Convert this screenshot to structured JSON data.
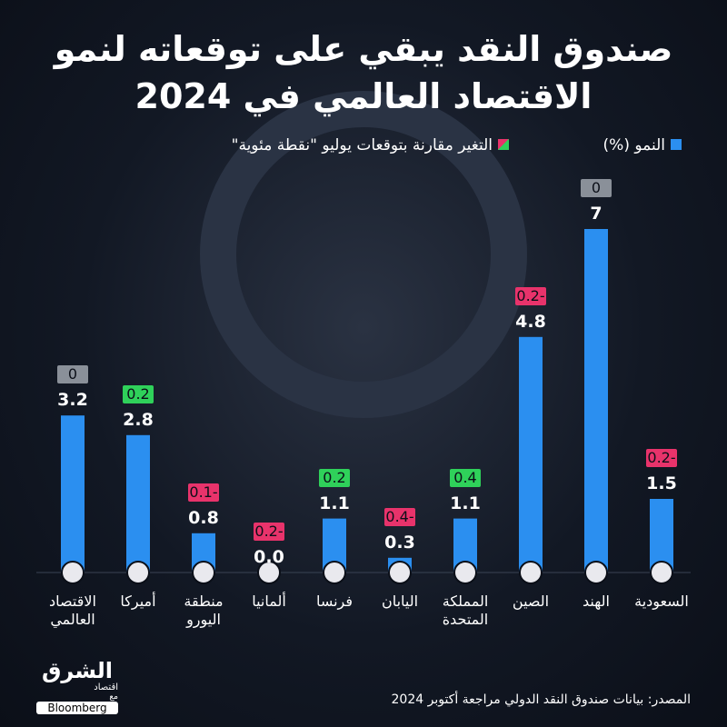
{
  "chart_data": {
    "type": "bar",
    "title": "صندوق النقد يبقي على توقعاته لنمو الاقتصاد العالمي في 2024",
    "categories": [
      "الاقتصاد العالمي",
      "أميركا",
      "منطقة اليورو",
      "ألمانيا",
      "فرنسا",
      "اليابان",
      "المملكة المتحدة",
      "الصين",
      "الهند",
      "السعودية"
    ],
    "series": [
      {
        "name": "النمو (%)",
        "color": "#2b8ff0",
        "values": [
          3.2,
          2.8,
          0.8,
          0,
          1.1,
          0.3,
          1.1,
          4.8,
          7,
          1.5
        ],
        "value_labels": [
          "3.2",
          "2.8",
          "0.8",
          "0.0",
          "1.1",
          "0.3",
          "1.1",
          "4.8",
          "7",
          "1.5"
        ]
      },
      {
        "name": "التغير مقارنة بتوقعات يوليو \"نقطة مئوية\"",
        "colors": [
          "#8a9099",
          "#2fd15a",
          "#e8336b",
          "#e8336b",
          "#2fd15a",
          "#e8336b",
          "#2fd15a",
          "#e8336b",
          "#8a9099",
          "#e8336b"
        ],
        "values": [
          0,
          0.2,
          -0.1,
          -0.2,
          0.2,
          -0.4,
          0.4,
          -0.2,
          0,
          -0.2
        ],
        "value_labels": [
          "0",
          "0.2",
          "0.1-",
          "0.2-",
          "0.2",
          "0.4-",
          "0.4",
          "0.2-",
          "0",
          "0.2-"
        ]
      }
    ],
    "source": "المصدر: بيانات صندوق النقد الدولي مراجعة أكتوبر 2024",
    "logo": {
      "name": "الشرق",
      "sub": "اقتصاد",
      "with": "مع",
      "partner": "Bloomberg"
    }
  }
}
